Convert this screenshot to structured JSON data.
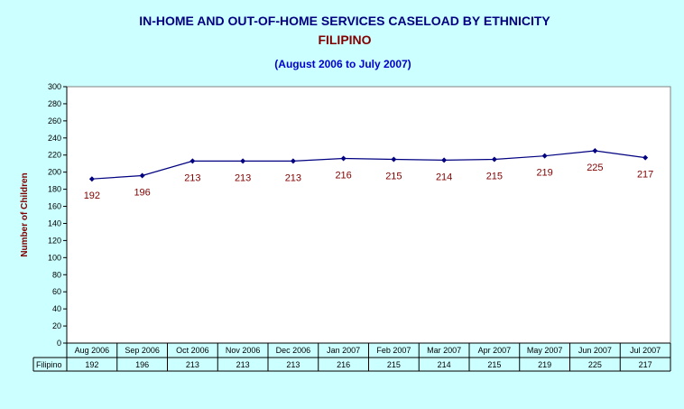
{
  "chart_data": {
    "type": "line",
    "title": "IN-HOME AND OUT-OF-HOME SERVICES CASELOAD BY ETHNICITY",
    "subtitle": "FILIPINO",
    "date_range": "(August 2006 to July 2007)",
    "ylabel": "Number of Children",
    "xlabel": "",
    "ylim": [
      0,
      300
    ],
    "y_ticks": [
      "0",
      "20",
      "40",
      "60",
      "80",
      "100",
      "120",
      "140",
      "160",
      "180",
      "200",
      "220",
      "240",
      "260",
      "280",
      "300"
    ],
    "grid": false,
    "categories": [
      "Aug 2006",
      "Sep 2006",
      "Oct 2006",
      "Nov 2006",
      "Dec 2006",
      "Jan 2007",
      "Feb 2007",
      "Mar 2007",
      "Apr 2007",
      "May 2007",
      "Jun 2007",
      "Jul 2007"
    ],
    "series": [
      {
        "name": "Filipino",
        "values": [
          192,
          196,
          213,
          213,
          213,
          216,
          215,
          214,
          215,
          219,
          225,
          217
        ]
      }
    ],
    "data_table": {
      "row_label": "Filipino",
      "values": [
        "192",
        "196",
        "213",
        "213",
        "213",
        "216",
        "215",
        "214",
        "215",
        "219",
        "225",
        "217"
      ]
    }
  },
  "colors": {
    "background": "#ccffff",
    "plot_background": "#ffffff",
    "title": "#000080",
    "subtitle": "#800000",
    "date_range": "#0000cc",
    "series_line": "#000080",
    "data_label": "#800000",
    "ylabel": "#800000",
    "axis": "#000000"
  }
}
